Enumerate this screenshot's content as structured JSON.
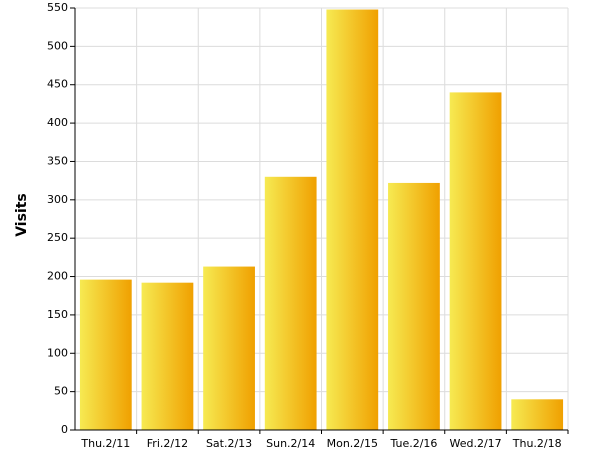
{
  "chart_data": {
    "type": "bar",
    "y_label": "Visits",
    "categories": [
      "Thu.2/11",
      "Fri.2/12",
      "Sat.2/13",
      "Sun.2/14",
      "Mon.2/15",
      "Tue.2/16",
      "Wed.2/17",
      "Thu.2/18"
    ],
    "values": [
      196,
      192,
      213,
      330,
      548,
      322,
      440,
      40
    ],
    "color": [
      "#f6ea52",
      "#f0a000"
    ],
    "ylim": [
      0,
      550
    ],
    "yticks": [
      0,
      50,
      100,
      150,
      200,
      250,
      300,
      350,
      400,
      450,
      500,
      550
    ],
    "grid": true
  }
}
